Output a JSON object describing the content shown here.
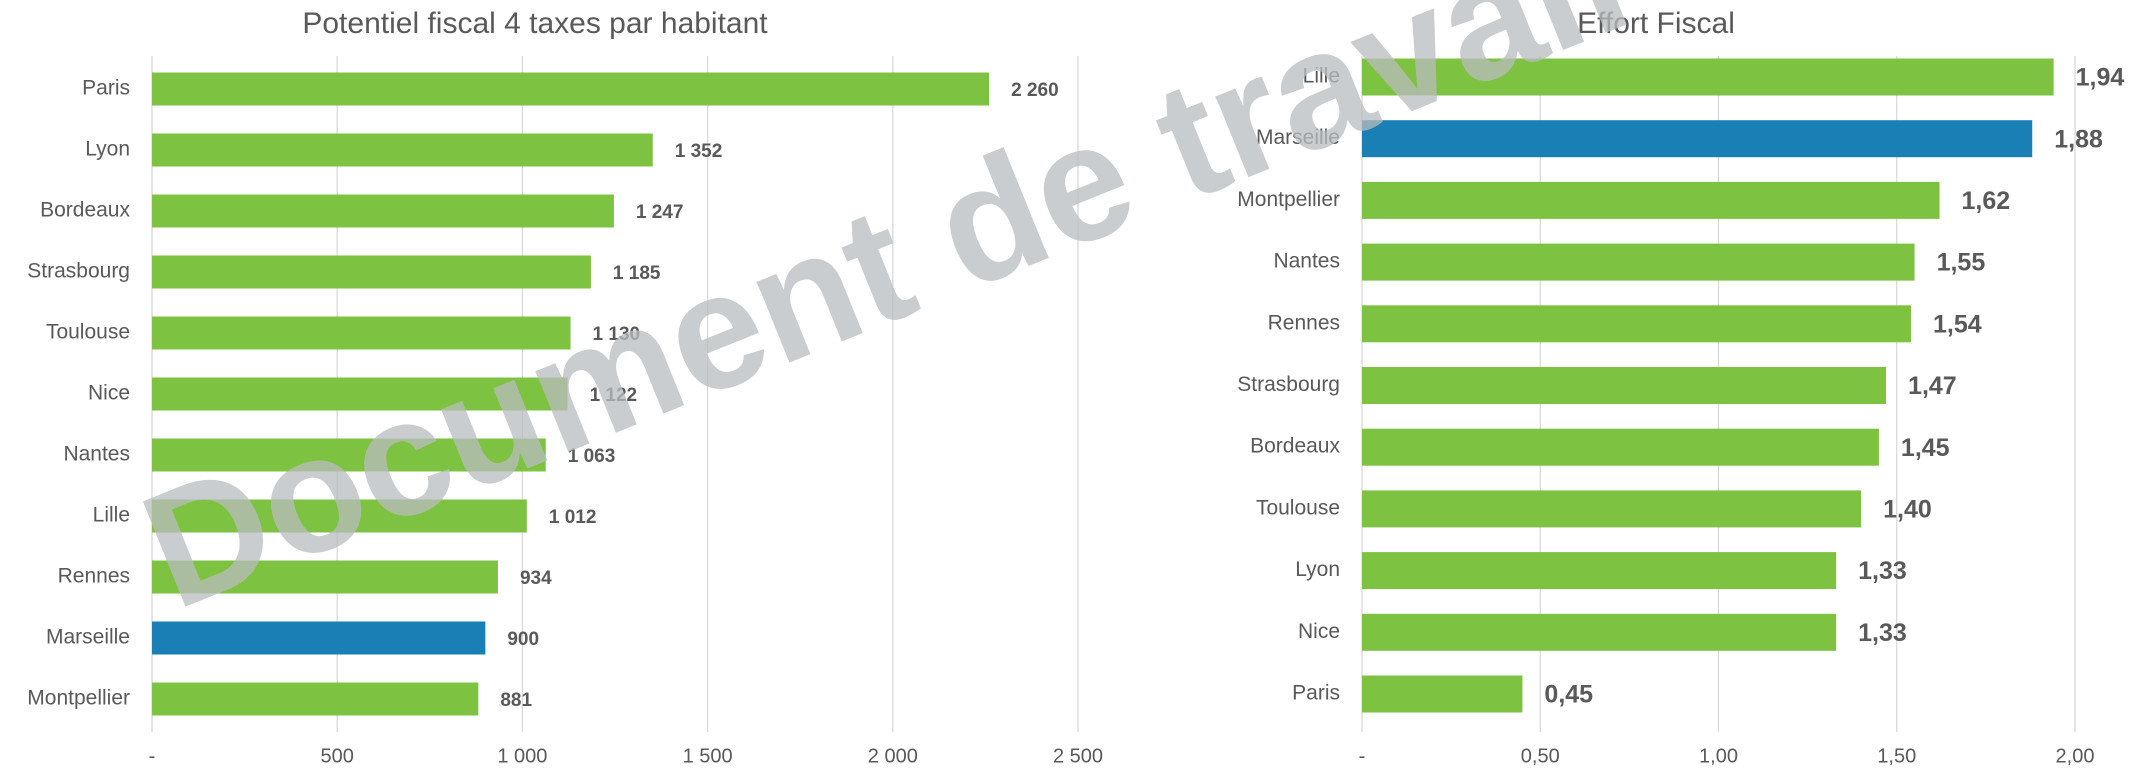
{
  "chart_data": [
    {
      "type": "bar",
      "orientation": "horizontal",
      "title": "Potentiel fiscal 4 taxes par habitant",
      "categories": [
        "Paris",
        "Lyon",
        "Bordeaux",
        "Strasbourg",
        "Toulouse",
        "Nice",
        "Nantes",
        "Lille",
        "Rennes",
        "Marseille",
        "Montpellier"
      ],
      "values": [
        2260,
        1352,
        1247,
        1185,
        1130,
        1122,
        1063,
        1012,
        934,
        900,
        881
      ],
      "value_labels": [
        "2 260",
        "1 352",
        "1 247",
        "1 185",
        "1 130",
        "1 122",
        "1 063",
        "1 012",
        "934",
        "900",
        "881"
      ],
      "colors": [
        "#7dc241",
        "#7dc241",
        "#7dc241",
        "#7dc241",
        "#7dc241",
        "#7dc241",
        "#7dc241",
        "#7dc241",
        "#7dc241",
        "#1a7fb5",
        "#7dc241"
      ],
      "xlim": [
        0,
        2500
      ],
      "xticks": [
        {
          "value": 0,
          "label": "-"
        },
        500,
        {
          "value": 1000,
          "label": "1 000"
        },
        {
          "value": 1500,
          "label": "1 500"
        },
        {
          "value": 2000,
          "label": "2 000"
        },
        {
          "value": 2500,
          "label": "2 500"
        }
      ],
      "grid": true
    },
    {
      "type": "bar",
      "orientation": "horizontal",
      "title": "Effort Fiscal",
      "categories": [
        "Lille",
        "Marseille",
        "Montpellier",
        "Nantes",
        "Rennes",
        "Strasbourg",
        "Bordeaux",
        "Toulouse",
        "Lyon",
        "Nice",
        "Paris"
      ],
      "values": [
        1.94,
        1.88,
        1.62,
        1.55,
        1.54,
        1.47,
        1.45,
        1.4,
        1.33,
        1.33,
        0.45
      ],
      "value_labels": [
        "1,94",
        "1,88",
        "1,62",
        "1,55",
        "1,54",
        "1,47",
        "1,45",
        "1,40",
        "1,33",
        "1,33",
        "0,45"
      ],
      "colors": [
        "#7dc241",
        "#1a7fb5",
        "#7dc241",
        "#7dc241",
        "#7dc241",
        "#7dc241",
        "#7dc241",
        "#7dc241",
        "#7dc241",
        "#7dc241",
        "#7dc241"
      ],
      "xlim": [
        0,
        2
      ],
      "xticks": [
        {
          "value": 0,
          "label": "-"
        },
        {
          "value": 0.5,
          "label": "0,50"
        },
        {
          "value": 1,
          "label": "1,00"
        },
        {
          "value": 1.5,
          "label": "1,50"
        },
        {
          "value": 2,
          "label": "2,00"
        }
      ],
      "grid": true
    }
  ],
  "watermark": "Document de travail"
}
